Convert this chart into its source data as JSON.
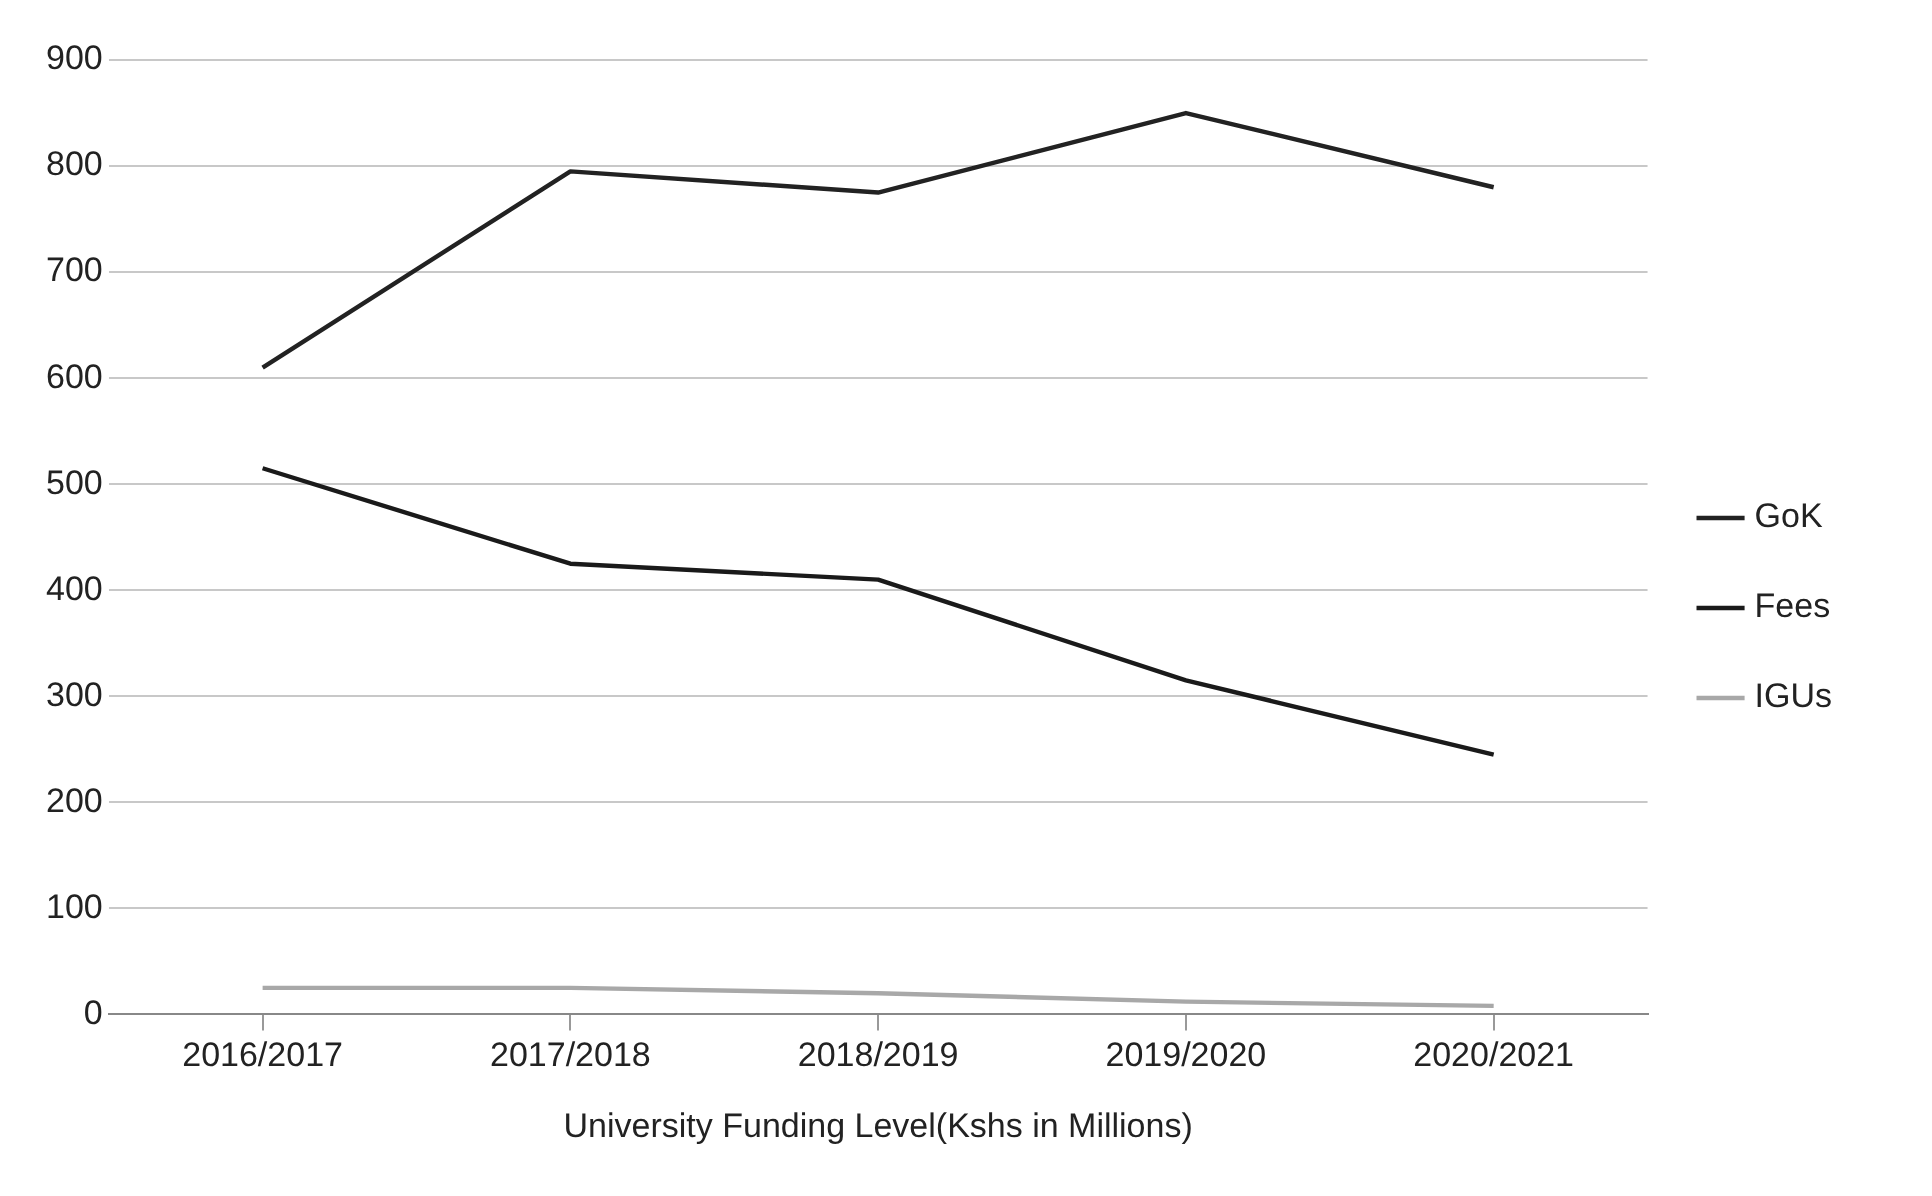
{
  "chart_data": {
    "type": "line",
    "xlabel": "University Funding Level(Kshs in Millions)",
    "categories": [
      "2016/2017",
      "2017/2018",
      "2018/2019",
      "2019/2020",
      "2020/2021"
    ],
    "series": [
      {
        "name": "GoK",
        "color": "#222222",
        "values": [
          610,
          795,
          775,
          850,
          780
        ]
      },
      {
        "name": "Fees",
        "color": "#1a1a1a",
        "values": [
          515,
          425,
          410,
          315,
          245
        ]
      },
      {
        "name": "IGUs",
        "color": "#a8a8a8",
        "values": [
          25,
          25,
          20,
          12,
          8
        ]
      }
    ],
    "ylim": [
      0,
      900
    ],
    "yticks": [
      0,
      100,
      200,
      300,
      400,
      500,
      600,
      700,
      800,
      900
    ],
    "grid": "y",
    "legend": "right",
    "marker": "none",
    "line_style": "solid"
  }
}
